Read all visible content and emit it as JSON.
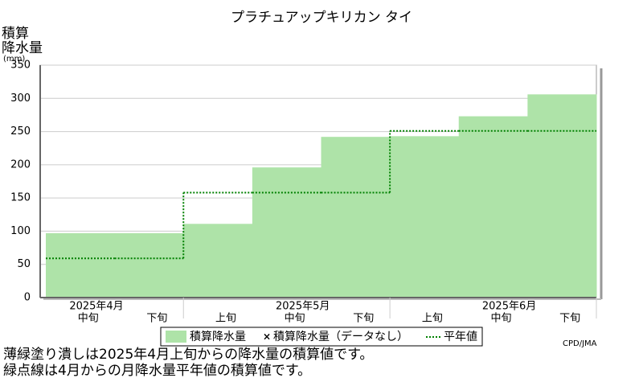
{
  "chart_data": {
    "type": "step-area",
    "title": "プラチュアップキリカン タイ",
    "ylabel": [
      "積算",
      "降水量",
      "(mm)"
    ],
    "months": [
      "2025年4月",
      "2025年5月",
      "2025年6月"
    ],
    "categories": [
      "中旬",
      "下旬",
      "上旬",
      "中旬",
      "下旬",
      "上旬",
      "中旬",
      "下旬"
    ],
    "series": [
      {
        "name": "積算降水量",
        "color": "#aee3a8",
        "values": [
          97,
          97,
          111,
          196,
          242,
          243,
          273,
          306
        ]
      },
      {
        "name": "平年値",
        "color": "#008000",
        "values": [
          59,
          59,
          158,
          158,
          158,
          251,
          251,
          251
        ]
      }
    ],
    "legend_missing": "積算降水量（データなし）",
    "ylim": [
      0,
      350
    ],
    "yticks": [
      0,
      50,
      100,
      150,
      200,
      250,
      300,
      350
    ],
    "grid": true,
    "credit": "CPD/JMA",
    "notes": [
      "薄緑塗り潰しは2025年4月上旬からの降水量の積算値です。",
      "緑点線は4月からの月降水量平年値の積算値です。"
    ]
  }
}
